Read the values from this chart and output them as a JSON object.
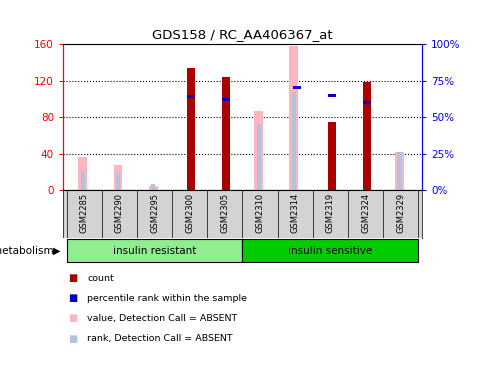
{
  "title": "GDS158 / RC_AA406367_at",
  "samples": [
    "GSM2285",
    "GSM2290",
    "GSM2295",
    "GSM2300",
    "GSM2305",
    "GSM2310",
    "GSM2314",
    "GSM2319",
    "GSM2324",
    "GSM2329"
  ],
  "groups": [
    {
      "label": "insulin resistant",
      "color": "#90EE90",
      "start": 0,
      "end": 4
    },
    {
      "label": "insulin sensitive",
      "color": "#00CC00",
      "start": 5,
      "end": 9
    }
  ],
  "group_label": "metabolism",
  "count_values": [
    0,
    0,
    0,
    134,
    124,
    0,
    0,
    75,
    118,
    0
  ],
  "rank_values": [
    0,
    0,
    0,
    64,
    62,
    0,
    70,
    65,
    60,
    0
  ],
  "absent_value_values": [
    36,
    28,
    5,
    0,
    0,
    87,
    158,
    0,
    0,
    42
  ],
  "absent_rank_values": [
    13,
    12,
    4,
    0,
    0,
    45,
    67,
    0,
    0,
    26
  ],
  "ylim_left": [
    0,
    160
  ],
  "ylim_right": [
    0,
    100
  ],
  "yticks_left": [
    0,
    40,
    80,
    120,
    160
  ],
  "yticks_right": [
    0,
    25,
    50,
    75,
    100
  ],
  "ytick_labels_left": [
    "0",
    "40",
    "80",
    "120",
    "160"
  ],
  "ytick_labels_right": [
    "0%",
    "25%",
    "50%",
    "75%",
    "100%"
  ],
  "color_count": "#AA0000",
  "color_rank": "#0000CC",
  "color_absent_value": "#FFB6C1",
  "color_absent_rank": "#B0C4DE",
  "legend_items": [
    {
      "color": "#AA0000",
      "label": "count"
    },
    {
      "color": "#0000CC",
      "label": "percentile rank within the sample"
    },
    {
      "color": "#FFB6C1",
      "label": "value, Detection Call = ABSENT"
    },
    {
      "color": "#B0C4DE",
      "label": "rank, Detection Call = ABSENT"
    }
  ]
}
